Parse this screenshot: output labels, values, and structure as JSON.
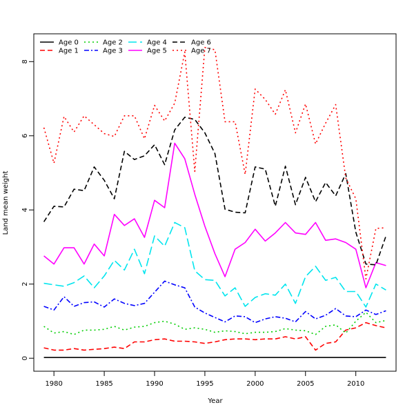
{
  "chart_data": {
    "type": "line",
    "title": "",
    "xlabel": "Year",
    "ylabel": "Land mean weight",
    "xlim": [
      1978,
      2014
    ],
    "ylim": [
      -0.35,
      8.75
    ],
    "x_ticks": [
      1980,
      1985,
      1990,
      1995,
      2000,
      2005,
      2010
    ],
    "y_ticks": [
      0,
      2,
      4,
      6,
      8
    ],
    "grid": false,
    "legend_position": "top-left",
    "x": [
      1979,
      1980,
      1981,
      1982,
      1983,
      1984,
      1985,
      1986,
      1987,
      1988,
      1989,
      1990,
      1991,
      1992,
      1993,
      1994,
      1995,
      1996,
      1997,
      1998,
      1999,
      2000,
      2001,
      2002,
      2003,
      2004,
      2005,
      2006,
      2007,
      2008,
      2009,
      2010,
      2011,
      2012,
      2013
    ],
    "series": [
      {
        "name": "Age 0",
        "color": "#000000",
        "dash": "solid",
        "values": [
          0.02,
          0.02,
          0.02,
          0.02,
          0.02,
          0.02,
          0.02,
          0.02,
          0.02,
          0.02,
          0.02,
          0.02,
          0.02,
          0.02,
          0.02,
          0.02,
          0.02,
          0.02,
          0.02,
          0.02,
          0.02,
          0.02,
          0.02,
          0.02,
          0.02,
          0.02,
          0.02,
          0.02,
          0.02,
          0.02,
          0.02,
          0.02,
          0.02,
          0.02,
          0.02
        ]
      },
      {
        "name": "Age 1",
        "color": "#ff0000",
        "dash": "dashed",
        "values": [
          0.28,
          0.22,
          0.22,
          0.26,
          0.22,
          0.24,
          0.26,
          0.3,
          0.26,
          0.44,
          0.44,
          0.5,
          0.52,
          0.46,
          0.46,
          0.44,
          0.4,
          0.44,
          0.5,
          0.52,
          0.52,
          0.5,
          0.52,
          0.52,
          0.58,
          0.52,
          0.58,
          0.22,
          0.4,
          0.44,
          0.76,
          0.82,
          0.96,
          0.88,
          0.82
        ]
      },
      {
        "name": "Age 2",
        "color": "#00cd00",
        "dash": "dotted",
        "values": [
          0.86,
          0.68,
          0.72,
          0.64,
          0.76,
          0.76,
          0.78,
          0.86,
          0.76,
          0.84,
          0.86,
          0.96,
          1.0,
          0.92,
          0.78,
          0.82,
          0.78,
          0.7,
          0.74,
          0.72,
          0.66,
          0.7,
          0.7,
          0.72,
          0.8,
          0.76,
          0.74,
          0.64,
          0.86,
          0.9,
          0.68,
          1.0,
          1.24,
          0.96,
          1.02
        ]
      },
      {
        "name": "Age 3",
        "color": "#0000ff",
        "dash": "dashdot",
        "values": [
          1.4,
          1.3,
          1.66,
          1.4,
          1.5,
          1.52,
          1.38,
          1.6,
          1.48,
          1.42,
          1.48,
          1.78,
          2.08,
          1.98,
          1.9,
          1.38,
          1.22,
          1.1,
          0.98,
          1.14,
          1.12,
          0.96,
          1.06,
          1.12,
          1.08,
          0.98,
          1.26,
          1.06,
          1.16,
          1.34,
          1.14,
          1.12,
          1.3,
          1.18,
          1.28
        ]
      },
      {
        "name": "Age 4",
        "color": "#00e5ee",
        "dash": "longdash",
        "values": [
          2.02,
          1.98,
          1.94,
          2.04,
          2.22,
          1.9,
          2.22,
          2.64,
          2.38,
          2.94,
          2.28,
          3.3,
          3.02,
          3.66,
          3.52,
          2.36,
          2.12,
          2.1,
          1.68,
          1.9,
          1.4,
          1.64,
          1.74,
          1.7,
          2.0,
          1.48,
          2.2,
          2.48,
          2.1,
          2.18,
          1.8,
          1.8,
          1.38,
          2.0,
          1.84
        ]
      },
      {
        "name": "Age 5",
        "color": "#ff00ff",
        "dash": "solid",
        "values": [
          2.76,
          2.54,
          2.98,
          2.98,
          2.54,
          3.08,
          2.76,
          3.88,
          3.58,
          3.76,
          3.26,
          4.26,
          4.06,
          5.8,
          5.38,
          4.42,
          3.56,
          2.82,
          2.2,
          2.94,
          3.12,
          3.48,
          3.16,
          3.38,
          3.66,
          3.38,
          3.34,
          3.66,
          3.18,
          3.22,
          3.12,
          2.94,
          1.9,
          2.58,
          2.5
        ]
      },
      {
        "name": "Age 6",
        "color": "#000000",
        "dash": "dashed",
        "values": [
          3.68,
          4.1,
          4.08,
          4.56,
          4.52,
          5.16,
          4.8,
          4.3,
          5.58,
          5.36,
          5.46,
          5.76,
          5.22,
          6.16,
          6.5,
          6.44,
          6.08,
          5.52,
          4.02,
          3.94,
          3.92,
          5.16,
          5.1,
          4.1,
          5.18,
          4.14,
          4.88,
          4.22,
          4.74,
          4.38,
          4.98,
          3.4,
          2.54,
          2.52,
          3.3
        ]
      },
      {
        "name": "Age 7",
        "color": "#ff0000",
        "dash": "dotted",
        "values": [
          6.22,
          5.26,
          6.52,
          6.1,
          6.54,
          6.3,
          6.06,
          5.98,
          6.54,
          6.54,
          5.92,
          6.82,
          6.4,
          6.88,
          8.26,
          5.04,
          8.38,
          8.32,
          6.38,
          6.38,
          4.96,
          7.26,
          6.98,
          6.58,
          7.24,
          6.08,
          6.86,
          5.78,
          6.34,
          6.84,
          4.86,
          4.3,
          2.14,
          3.5,
          3.52
        ]
      }
    ]
  }
}
